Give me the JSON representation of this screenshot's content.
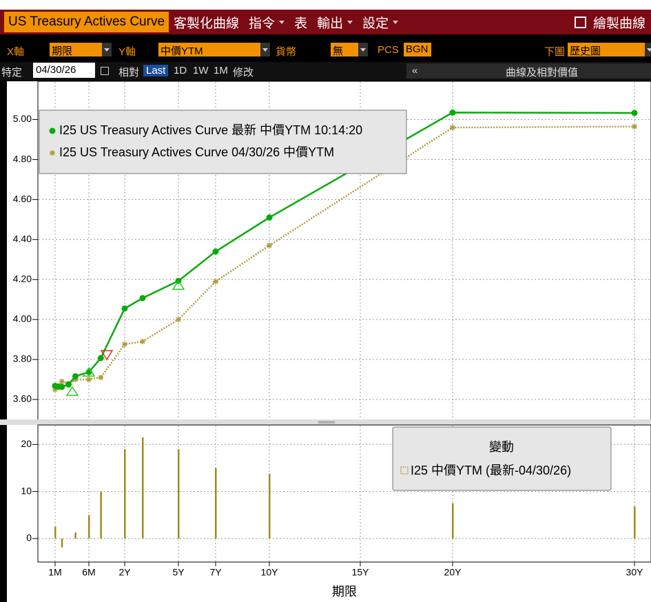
{
  "toolbar": {
    "title": "US Treasury Actives Curve",
    "items": [
      "客製化曲線",
      "指令",
      "表",
      "輸出",
      "設定"
    ],
    "action": "繪製曲線"
  },
  "controls": {
    "x_axis": {
      "label": "X軸",
      "value": "期限"
    },
    "y_axis": {
      "label": "Y軸",
      "value": "中價YTM"
    },
    "currency": {
      "label": "貨幣",
      "value": "無"
    },
    "pcs": {
      "label": "PCS",
      "value": "BGN"
    },
    "lower": {
      "label": "下圖",
      "value": "歷史圖"
    }
  },
  "dates": {
    "label": "特定",
    "date": "04/30/26",
    "relative": "相對",
    "options": [
      "Last",
      "1D",
      "1W",
      "1M"
    ],
    "edit": "修改",
    "collapse": "«",
    "panel": "曲線及相對價值"
  },
  "chart_data": [
    {
      "type": "line",
      "x": [
        0.0833,
        0.125,
        0.1667,
        0.25,
        0.3333,
        0.5,
        1,
        2,
        3,
        5,
        7,
        10,
        20,
        30
      ],
      "series": [
        {
          "name": "I25 US Treasury Actives Curve 最新 中價YTM 10:14:20",
          "color": "#0aaa0a",
          "marker": "circle",
          "style": "solid",
          "values": [
            3.668,
            3.665,
            3.663,
            3.675,
            3.716,
            3.737,
            3.807,
            4.055,
            4.107,
            4.193,
            4.34,
            4.51,
            5.035,
            5.033
          ]
        },
        {
          "name": "I25 US Treasury Actives Curve 04/30/26 中價YTM",
          "color": "#b09a3c",
          "marker": "asterisk",
          "style": "dotted",
          "values": [
            3.65,
            3.66,
            3.69,
            3.68,
            3.7,
            3.7,
            3.71,
            3.876,
            3.89,
            4.0,
            4.19,
            4.37,
            4.96,
            4.965
          ]
        }
      ],
      "ylim": [
        3.5,
        5.15
      ],
      "yticks": [
        {
          "value": 3.6,
          "label": "3.60"
        },
        {
          "value": 3.8,
          "label": "3.80"
        },
        {
          "value": 4.0,
          "label": "4.00"
        },
        {
          "value": 4.2,
          "label": "4.20"
        },
        {
          "value": 4.4,
          "label": "4.40"
        },
        {
          "value": 4.6,
          "label": "4.60"
        },
        {
          "value": 4.8,
          "label": "4.80"
        },
        {
          "value": 5.0,
          "label": "5.00"
        }
      ],
      "grid": true,
      "legend": "upper left"
    },
    {
      "type": "bar",
      "x": [
        0.0833,
        0.1667,
        0.3333,
        0.5,
        1,
        2,
        3,
        5,
        7,
        10,
        20,
        30
      ],
      "series": [
        {
          "name": "I25 中價YTM (最新-04/30/26)",
          "color": "#a08a1e",
          "values": [
            2.5,
            -1.9,
            1.3,
            5,
            10,
            19,
            21.5,
            19,
            15,
            13.8,
            7.5,
            6.8
          ]
        }
      ],
      "legend_title": "變動",
      "xlabel": "期限",
      "xlim": [
        0,
        31
      ],
      "xticks": [
        {
          "value": 0.0833,
          "label": "1M"
        },
        {
          "value": 0.5,
          "label": "6M"
        },
        {
          "value": 2,
          "label": "2Y"
        },
        {
          "value": 5,
          "label": "5Y"
        },
        {
          "value": 7,
          "label": "7Y"
        },
        {
          "value": 10,
          "label": "10Y"
        },
        {
          "value": 15,
          "label": "15Y"
        },
        {
          "value": 20,
          "label": "20Y"
        },
        {
          "value": 30,
          "label": "30Y"
        }
      ],
      "ylim": [
        -5,
        24
      ],
      "yticks": [
        0,
        10,
        20
      ],
      "grid": true,
      "legend": "upper right"
    }
  ]
}
